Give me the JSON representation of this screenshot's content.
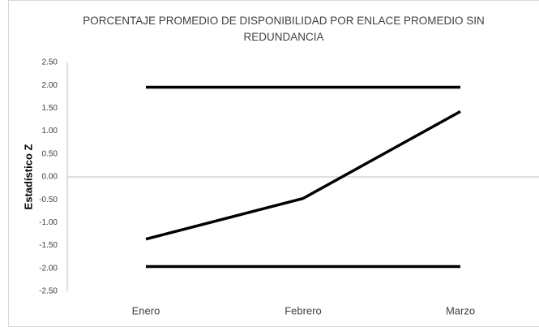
{
  "chart_data": {
    "type": "line",
    "title": "PORCENTAJE PROMEDIO DE DISPONIBILIDAD POR ENLACE PROMEDIO SIN REDUNDANCIA",
    "y_label": "Estadístico Z",
    "categories": [
      "Enero",
      "Febrero",
      "Marzo"
    ],
    "series": [
      {
        "color": "#000000",
        "values": [
          1.96,
          1.96,
          1.96
        ]
      },
      {
        "color": "#000000",
        "values": [
          -1.36,
          -0.47,
          1.43
        ]
      },
      {
        "color": "#000000",
        "values": [
          -1.96,
          -1.96,
          -1.96
        ]
      }
    ],
    "ylim": [
      -2.5,
      2.5
    ],
    "yticks": [
      {
        "value": 2.5,
        "label": "2.50"
      },
      {
        "value": 2,
        "label": "2.00"
      },
      {
        "value": 1.5,
        "label": "1.50"
      },
      {
        "value": 1,
        "label": "1.00"
      },
      {
        "value": 0.5,
        "label": "0.50"
      },
      {
        "value": 0,
        "label": "0.00"
      },
      {
        "value": -0.5,
        "label": "-0.50"
      },
      {
        "value": -1,
        "label": "-1.00"
      },
      {
        "value": -1.5,
        "label": "-1.50"
      },
      {
        "value": -2,
        "label": "-2.00"
      },
      {
        "value": -2.5,
        "label": "-2.50"
      }
    ],
    "grid": false
  }
}
